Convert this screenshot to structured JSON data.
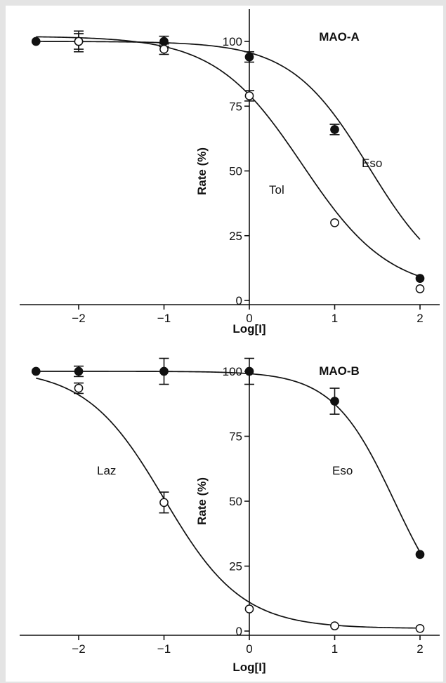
{
  "chart_data": [
    {
      "type": "scatter",
      "title": "MAO-A",
      "xlabel": "Log[I]",
      "ylabel": "Rate (%)",
      "xlim": [
        -2.55,
        2.3
      ],
      "ylim": [
        -2,
        107
      ],
      "x_ticks": [
        -2,
        -1,
        0,
        1,
        2
      ],
      "y_ticks": [
        0,
        25,
        50,
        75,
        100
      ],
      "series": [
        {
          "name": "Eso",
          "marker": "filled",
          "curve": {
            "top": 100,
            "bottom": 3,
            "logIC50": 1.4,
            "hill": 0.95
          },
          "points": [
            {
              "x": -2.5,
              "y": 100,
              "err": 0
            },
            {
              "x": -2,
              "y": 100,
              "err": 4
            },
            {
              "x": -1,
              "y": 100,
              "err": 2
            },
            {
              "x": 0,
              "y": 94,
              "err": 2
            },
            {
              "x": 1,
              "y": 66,
              "err": 2
            },
            {
              "x": 2,
              "y": 8.5,
              "err": 0
            }
          ]
        },
        {
          "name": "Tol",
          "marker": "open",
          "curve": {
            "top": 102,
            "bottom": 3,
            "logIC50": 0.62,
            "hill": 0.85
          },
          "points": [
            {
              "x": -2,
              "y": 100,
              "err": 3
            },
            {
              "x": -1,
              "y": 97,
              "err": 2
            },
            {
              "x": 0,
              "y": 79,
              "err": 2
            },
            {
              "x": 1,
              "y": 30,
              "err": 0
            },
            {
              "x": 2,
              "y": 4.5,
              "err": 0
            }
          ]
        }
      ]
    },
    {
      "type": "scatter",
      "title": "MAO-B",
      "xlabel": "Log[I]",
      "ylabel": "Rate (%)",
      "xlim": [
        -2.55,
        2.3
      ],
      "ylim": [
        -2,
        107
      ],
      "x_ticks": [
        -2,
        -1,
        0,
        1,
        2
      ],
      "y_ticks": [
        0,
        25,
        50,
        75,
        100
      ],
      "series": [
        {
          "name": "Eso",
          "marker": "filled",
          "curve": {
            "top": 100,
            "bottom": 0,
            "logIC50": 1.7,
            "hill": 1.2
          },
          "points": [
            {
              "x": -2.5,
              "y": 100,
              "err": 0
            },
            {
              "x": -2,
              "y": 100,
              "err": 2
            },
            {
              "x": -1,
              "y": 100,
              "err": 5
            },
            {
              "x": 0,
              "y": 100,
              "err": 5
            },
            {
              "x": 1,
              "y": 88.5,
              "err": 5
            },
            {
              "x": 2,
              "y": 29.5,
              "err": 0
            }
          ]
        },
        {
          "name": "Laz",
          "marker": "open",
          "curve": {
            "top": 101,
            "bottom": 1,
            "logIC50": -1.0,
            "hill": 0.95
          },
          "points": [
            {
              "x": -2,
              "y": 93.5,
              "err": 2
            },
            {
              "x": -1,
              "y": 49.5,
              "err": 4
            },
            {
              "x": 0,
              "y": 8.5,
              "err": 0
            },
            {
              "x": 1,
              "y": 2,
              "err": 0
            },
            {
              "x": 2,
              "y": 1,
              "err": 0
            }
          ]
        }
      ]
    }
  ]
}
